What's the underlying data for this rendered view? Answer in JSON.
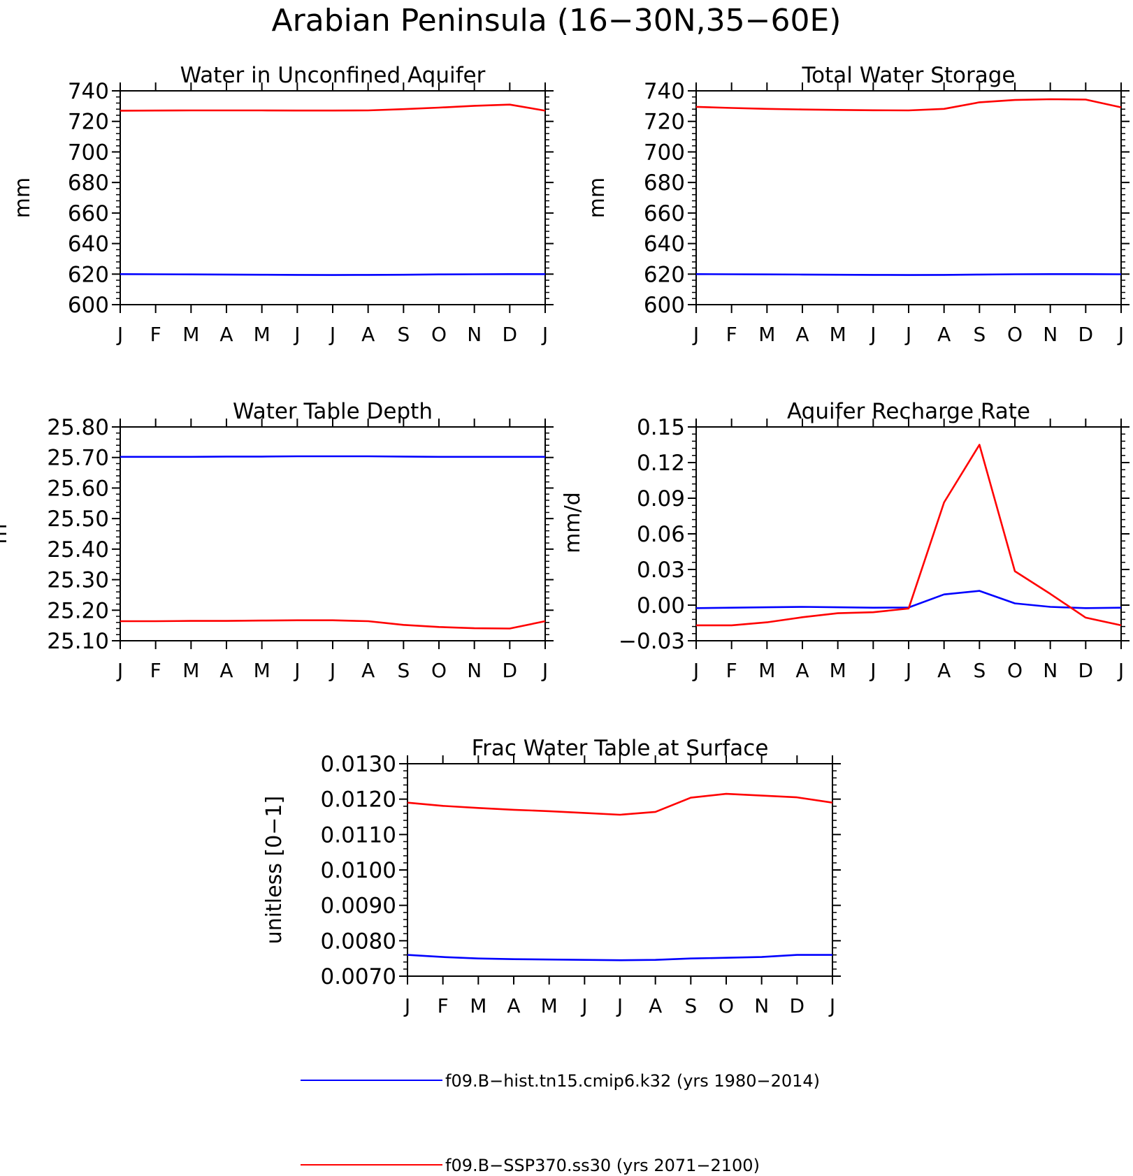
{
  "title": "Arabian Peninsula (16−30N,35−60E)",
  "months": [
    "J",
    "F",
    "M",
    "A",
    "M",
    "J",
    "J",
    "A",
    "S",
    "O",
    "N",
    "D",
    "J"
  ],
  "legend": [
    {
      "label": "f09.B−hist.tn15.cmip6.k32 (yrs 1980−2014)",
      "color": "#0000ff"
    },
    {
      "label": "f09.B−SSP370.ss30 (yrs 2071−2100)",
      "color": "#ff0000"
    }
  ],
  "chart_data": [
    {
      "type": "line",
      "title": "Water in Unconfined Aquifer",
      "ylabel": "mm",
      "ylim": [
        600,
        740
      ],
      "yticks": [
        600,
        620,
        640,
        660,
        680,
        700,
        720,
        740
      ],
      "ytick_labels": [
        "600",
        "620",
        "640",
        "660",
        "680",
        "700",
        "720",
        "740"
      ],
      "series": [
        {
          "name": "f09.B−hist.tn15.cmip6.k32 (yrs 1980−2014)",
          "color": "#0000ff",
          "values": [
            620,
            619.9,
            619.8,
            619.7,
            619.6,
            619.5,
            619.4,
            619.5,
            619.6,
            619.8,
            619.9,
            620,
            620
          ]
        },
        {
          "name": "f09.B−SSP370.ss30 (yrs 2071−2100)",
          "color": "#ff0000",
          "values": [
            727,
            727.1,
            727.2,
            727.2,
            727.2,
            727.1,
            727.1,
            727.2,
            728,
            729,
            730.2,
            731,
            727
          ]
        }
      ]
    },
    {
      "type": "line",
      "title": "Total Water Storage",
      "ylabel": "mm",
      "ylim": [
        600,
        740
      ],
      "yticks": [
        600,
        620,
        640,
        660,
        680,
        700,
        720,
        740
      ],
      "ytick_labels": [
        "600",
        "620",
        "640",
        "660",
        "680",
        "700",
        "720",
        "740"
      ],
      "series": [
        {
          "name": "f09.B−hist.tn15.cmip6.k32 (yrs 1980−2014)",
          "color": "#0000ff",
          "values": [
            620,
            619.9,
            619.8,
            619.7,
            619.6,
            619.5,
            619.4,
            619.5,
            619.7,
            619.9,
            620,
            620,
            619.9
          ]
        },
        {
          "name": "f09.B−SSP370.ss30 (yrs 2071−2100)",
          "color": "#ff0000",
          "values": [
            729.5,
            728.8,
            728.2,
            727.8,
            727.5,
            727.3,
            727.2,
            728.2,
            732.5,
            734,
            734.5,
            734.3,
            729.2
          ]
        }
      ]
    },
    {
      "type": "line",
      "title": "Water Table Depth",
      "ylabel": "m",
      "ylim": [
        25.1,
        25.8
      ],
      "yticks": [
        25.1,
        25.2,
        25.3,
        25.4,
        25.5,
        25.6,
        25.7,
        25.8
      ],
      "ytick_labels": [
        "25.10",
        "25.20",
        "25.30",
        "25.40",
        "25.50",
        "25.60",
        "25.70",
        "25.80"
      ],
      "series": [
        {
          "name": "f09.B−hist.tn15.cmip6.k32 (yrs 1980−2014)",
          "color": "#0000ff",
          "values": [
            25.702,
            25.702,
            25.702,
            25.703,
            25.703,
            25.704,
            25.704,
            25.704,
            25.703,
            25.702,
            25.702,
            25.702,
            25.702
          ]
        },
        {
          "name": "f09.B−SSP370.ss30 (yrs 2071−2100)",
          "color": "#ff0000",
          "values": [
            25.164,
            25.164,
            25.165,
            25.165,
            25.166,
            25.167,
            25.167,
            25.164,
            25.152,
            25.145,
            25.141,
            25.14,
            25.164
          ]
        }
      ]
    },
    {
      "type": "line",
      "title": "Aquifer Recharge Rate",
      "ylabel": "mm/d",
      "ylim": [
        -0.03,
        0.15
      ],
      "yticks": [
        -0.03,
        0,
        0.03,
        0.06,
        0.09,
        0.12,
        0.15
      ],
      "ytick_labels": [
        "−0.03",
        "0.00",
        "0.03",
        "0.06",
        "0.09",
        "0.12",
        "0.15"
      ],
      "series": [
        {
          "name": "f09.B−hist.tn15.cmip6.k32 (yrs 1980−2014)",
          "color": "#0000ff",
          "values": [
            -0.0025,
            -0.0022,
            -0.0018,
            -0.0015,
            -0.0018,
            -0.0022,
            -0.002,
            0.009,
            0.012,
            0.0015,
            -0.0015,
            -0.0025,
            -0.0022
          ]
        },
        {
          "name": "f09.B−SSP370.ss30 (yrs 2071−2100)",
          "color": "#ff0000",
          "values": [
            -0.017,
            -0.017,
            -0.0145,
            -0.0102,
            -0.0068,
            -0.006,
            -0.0028,
            0.0865,
            0.135,
            0.0285,
            0.0095,
            -0.0105,
            -0.017
          ]
        }
      ]
    },
    {
      "type": "line",
      "title": "Frac Water Table at Surface",
      "ylabel": "unitless [0−1]",
      "ylim": [
        0.007,
        0.013
      ],
      "yticks": [
        0.007,
        0.008,
        0.009,
        0.01,
        0.011,
        0.012,
        0.013
      ],
      "ytick_labels": [
        "0.0070",
        "0.0080",
        "0.0090",
        "0.0100",
        "0.0110",
        "0.0120",
        "0.0130"
      ],
      "series": [
        {
          "name": "f09.B−hist.tn15.cmip6.k32 (yrs 1980−2014)",
          "color": "#0000ff",
          "values": [
            0.0076,
            0.00754,
            0.0075,
            0.00748,
            0.00747,
            0.00746,
            0.00745,
            0.00746,
            0.0075,
            0.00752,
            0.00754,
            0.0076,
            0.0076
          ]
        },
        {
          "name": "f09.B−SSP370.ss30 (yrs 2071−2100)",
          "color": "#ff0000",
          "values": [
            0.0119,
            0.01181,
            0.01175,
            0.0117,
            0.01166,
            0.01161,
            0.01156,
            0.01164,
            0.01204,
            0.01215,
            0.0121,
            0.01205,
            0.0119
          ]
        }
      ]
    }
  ]
}
